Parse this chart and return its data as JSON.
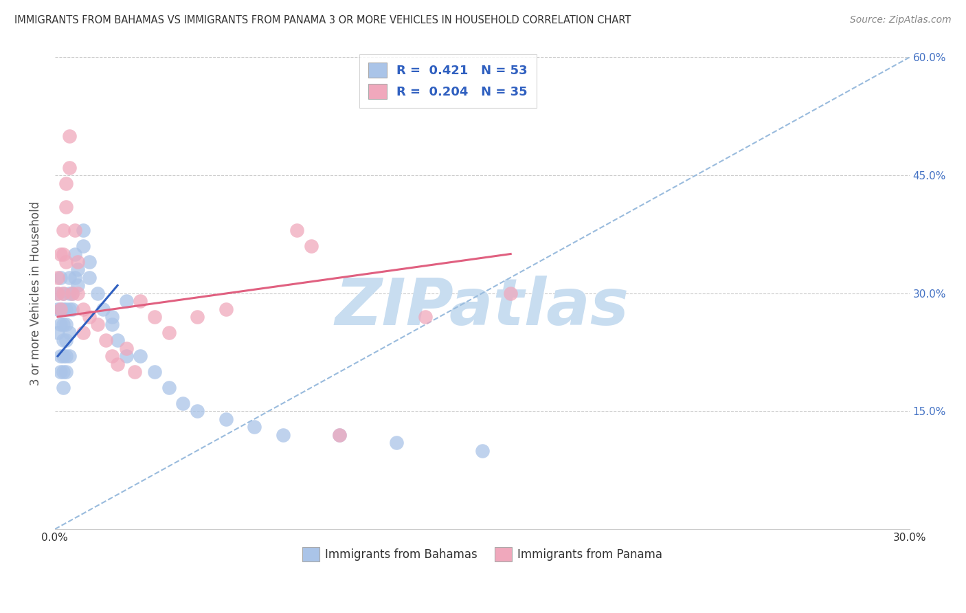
{
  "title": "IMMIGRANTS FROM BAHAMAS VS IMMIGRANTS FROM PANAMA 3 OR MORE VEHICLES IN HOUSEHOLD CORRELATION CHART",
  "source": "Source: ZipAtlas.com",
  "ylabel": "3 or more Vehicles in Household",
  "xlim": [
    0.0,
    0.3
  ],
  "ylim": [
    0.0,
    0.6
  ],
  "xticks": [
    0.0,
    0.075,
    0.15,
    0.225,
    0.3
  ],
  "yticks": [
    0.0,
    0.15,
    0.3,
    0.45,
    0.6
  ],
  "xtick_labels": [
    "0.0%",
    "",
    "",
    "",
    "30.0%"
  ],
  "ytick_labels_right": [
    "",
    "15.0%",
    "30.0%",
    "45.0%",
    "60.0%"
  ],
  "legend1_R": "0.421",
  "legend1_N": "53",
  "legend2_R": "0.204",
  "legend2_N": "35",
  "color_bahamas": "#aac4e8",
  "color_panama": "#f0a8bc",
  "color_blue_line": "#3060c0",
  "color_pink_line": "#e06080",
  "color_dash_line": "#99bbdd",
  "watermark": "ZIPatlas",
  "watermark_color": "#c8ddf0",
  "bahamas_x": [
    0.001,
    0.001,
    0.001,
    0.002,
    0.002,
    0.002,
    0.002,
    0.002,
    0.003,
    0.003,
    0.003,
    0.003,
    0.003,
    0.003,
    0.003,
    0.004,
    0.004,
    0.004,
    0.004,
    0.004,
    0.005,
    0.005,
    0.005,
    0.005,
    0.005,
    0.006,
    0.006,
    0.007,
    0.007,
    0.008,
    0.008,
    0.01,
    0.01,
    0.012,
    0.012,
    0.015,
    0.017,
    0.02,
    0.022,
    0.025,
    0.03,
    0.035,
    0.04,
    0.045,
    0.05,
    0.06,
    0.07,
    0.08,
    0.1,
    0.12,
    0.15,
    0.02,
    0.025
  ],
  "bahamas_y": [
    0.3,
    0.28,
    0.25,
    0.32,
    0.28,
    0.26,
    0.22,
    0.2,
    0.3,
    0.28,
    0.26,
    0.24,
    0.22,
    0.2,
    0.18,
    0.28,
    0.26,
    0.24,
    0.22,
    0.2,
    0.32,
    0.3,
    0.28,
    0.25,
    0.22,
    0.3,
    0.28,
    0.35,
    0.32,
    0.33,
    0.31,
    0.38,
    0.36,
    0.34,
    0.32,
    0.3,
    0.28,
    0.26,
    0.24,
    0.22,
    0.22,
    0.2,
    0.18,
    0.16,
    0.15,
    0.14,
    0.13,
    0.12,
    0.12,
    0.11,
    0.1,
    0.27,
    0.29
  ],
  "panama_x": [
    0.001,
    0.001,
    0.002,
    0.002,
    0.003,
    0.003,
    0.003,
    0.004,
    0.004,
    0.004,
    0.005,
    0.005,
    0.006,
    0.007,
    0.008,
    0.008,
    0.01,
    0.01,
    0.012,
    0.015,
    0.018,
    0.02,
    0.022,
    0.025,
    0.028,
    0.03,
    0.035,
    0.04,
    0.05,
    0.06,
    0.085,
    0.09,
    0.1,
    0.13,
    0.16
  ],
  "panama_y": [
    0.32,
    0.3,
    0.35,
    0.28,
    0.38,
    0.35,
    0.3,
    0.44,
    0.41,
    0.34,
    0.5,
    0.46,
    0.3,
    0.38,
    0.34,
    0.3,
    0.28,
    0.25,
    0.27,
    0.26,
    0.24,
    0.22,
    0.21,
    0.23,
    0.2,
    0.29,
    0.27,
    0.25,
    0.27,
    0.28,
    0.38,
    0.36,
    0.12,
    0.27,
    0.3
  ],
  "blue_line_x": [
    0.001,
    0.022
  ],
  "blue_line_y": [
    0.22,
    0.31
  ],
  "pink_line_x": [
    0.001,
    0.16
  ],
  "pink_line_y": [
    0.27,
    0.35
  ],
  "dash_line_x": [
    0.0,
    0.3
  ],
  "dash_line_y": [
    0.0,
    0.6
  ]
}
